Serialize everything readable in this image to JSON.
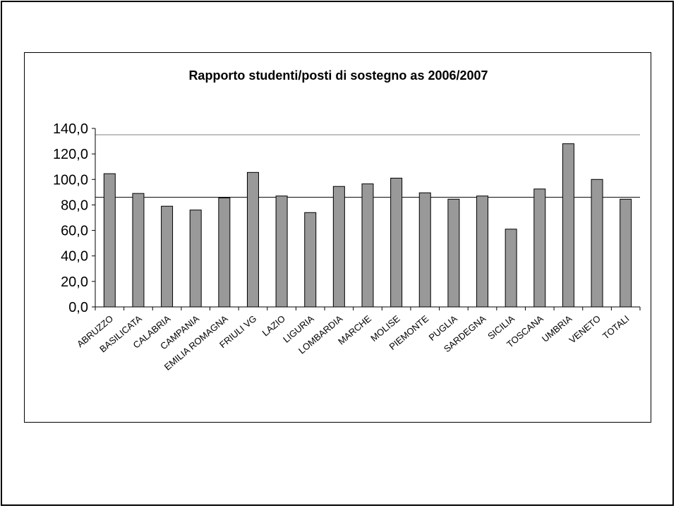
{
  "chart_data": {
    "type": "bar",
    "title": "Rapporto studenti/posti di sostegno as 2006/2007",
    "xlabel": "",
    "ylabel": "",
    "categories": [
      "ABRUZZO",
      "BASILICATA",
      "CALABRIA",
      "CAMPANIA",
      "EMILIA ROMAGNA",
      "FRIULI VG",
      "LAZIO",
      "LIGURIA",
      "LOMBARDIA",
      "MARCHE",
      "MOLISE",
      "PIEMONTE",
      "PUGLIA",
      "SARDEGNA",
      "SICILIA",
      "TOSCANA",
      "UMBRIA",
      "VENETO",
      "TOTALI"
    ],
    "values": [
      104.5,
      89.0,
      79.0,
      76.0,
      85.5,
      105.5,
      87.0,
      74.0,
      94.5,
      96.5,
      101.0,
      89.5,
      84.5,
      87.0,
      61.0,
      92.5,
      128.0,
      100.0,
      84.5
    ],
    "ylim": [
      0,
      140
    ],
    "yticks": [
      "0,0",
      "20,0",
      "40,0",
      "60,0",
      "80,0",
      "100,0",
      "120,0",
      "140,0"
    ],
    "reference_lines": [
      135,
      86
    ],
    "bar_color": "#999999",
    "grid": false,
    "legend": "none"
  }
}
